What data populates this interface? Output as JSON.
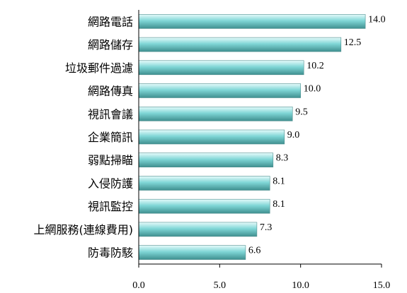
{
  "chart_data": {
    "type": "bar",
    "orientation": "horizontal",
    "categories": [
      "網路電話",
      "網路儲存",
      "垃圾郵件過濾",
      "網路傳真",
      "視訊會議",
      "企業簡訊",
      "弱點掃瞄",
      "入侵防護",
      "視訊監控",
      "上網服務(連線費用)",
      "防毒防駭"
    ],
    "values": [
      14.0,
      12.5,
      10.2,
      10.0,
      9.5,
      9.0,
      8.3,
      8.1,
      8.1,
      7.3,
      6.6
    ],
    "value_labels": [
      "14.0",
      "12.5",
      "10.2",
      "10.0",
      "9.5",
      "9.0",
      "8.3",
      "8.1",
      "8.1",
      "7.3",
      "6.6"
    ],
    "xlim": [
      0,
      15
    ],
    "xticks": [
      0,
      5,
      10,
      15
    ],
    "xtick_labels": [
      "0.0",
      "5.0",
      "10.0",
      "15.0"
    ],
    "title": "",
    "xlabel": "",
    "ylabel": "",
    "grid": false,
    "legend": "none",
    "colors": {
      "bar_light": "#e6fbfb",
      "bar_mid": "#7fd6d6",
      "bar_dark": "#3f8f8f",
      "bar_edge": "#4f8f8f"
    }
  }
}
